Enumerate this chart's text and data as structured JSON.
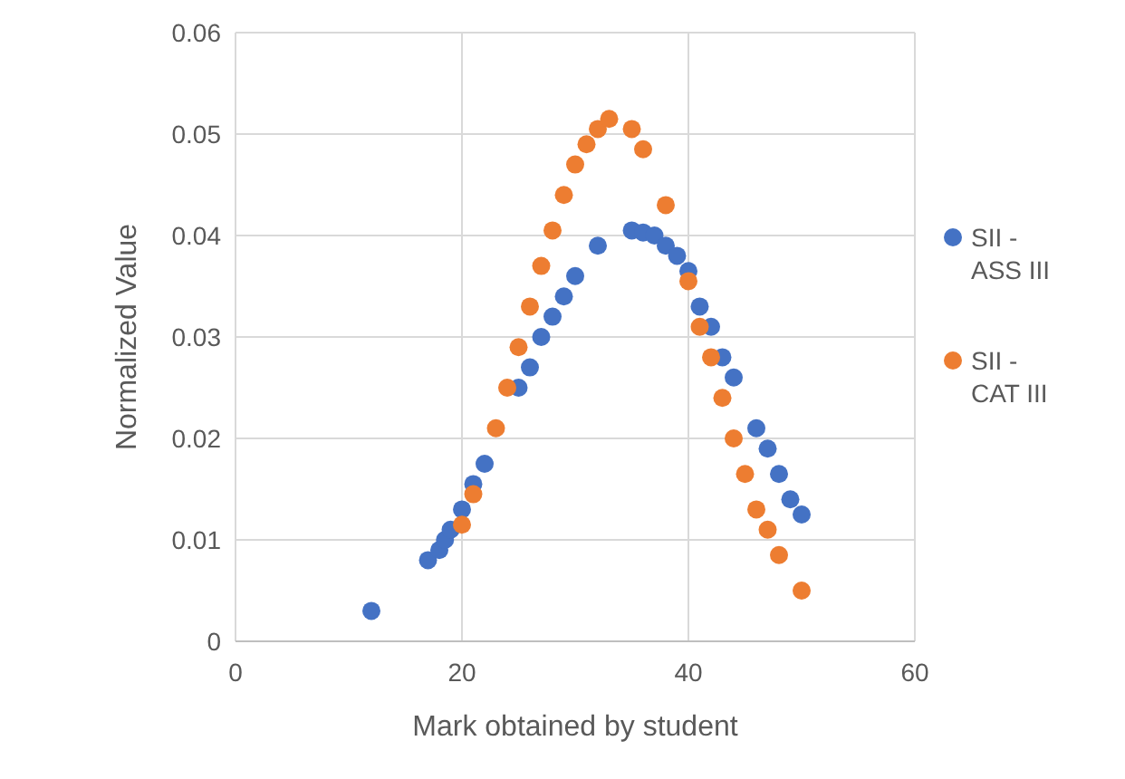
{
  "chart_data": {
    "type": "scatter",
    "xlabel": "Mark obtained by student",
    "ylabel": "Normalized Value",
    "xlim": [
      0,
      60
    ],
    "xticks": [
      0,
      20,
      40,
      60
    ],
    "ylim": [
      0,
      0.06
    ],
    "yticks": [
      0,
      0.01,
      0.02,
      0.03,
      0.04,
      0.05,
      0.06
    ],
    "grid": true,
    "legend": "right",
    "marker": "circle",
    "series": [
      {
        "name": "SII - ASS III",
        "color": "#4472c4",
        "x": [
          12,
          17,
          18,
          18.5,
          19,
          20,
          21,
          22,
          25,
          26,
          27,
          28,
          29,
          30,
          32,
          35,
          36,
          37,
          38,
          39,
          40,
          41,
          42,
          43,
          44,
          46,
          47,
          48,
          49,
          50
        ],
        "values": [
          0.003,
          0.008,
          0.009,
          0.01,
          0.011,
          0.013,
          0.0155,
          0.0175,
          0.025,
          0.027,
          0.03,
          0.032,
          0.034,
          0.036,
          0.039,
          0.0405,
          0.0403,
          0.04,
          0.039,
          0.038,
          0.0365,
          0.033,
          0.031,
          0.028,
          0.026,
          0.021,
          0.019,
          0.0165,
          0.014,
          0.0125
        ]
      },
      {
        "name": "SII - CAT III",
        "color": "#ed7d31",
        "x": [
          20,
          21,
          23,
          24,
          25,
          26,
          27,
          28,
          29,
          30,
          31,
          32,
          33,
          35,
          36,
          38,
          40,
          41,
          42,
          43,
          44,
          45,
          46,
          47,
          48,
          50
        ],
        "values": [
          0.0115,
          0.0145,
          0.021,
          0.025,
          0.029,
          0.033,
          0.037,
          0.0405,
          0.044,
          0.047,
          0.049,
          0.0505,
          0.0515,
          0.0505,
          0.0485,
          0.043,
          0.0355,
          0.031,
          0.028,
          0.024,
          0.02,
          0.0165,
          0.013,
          0.011,
          0.0085,
          0.005
        ]
      }
    ]
  }
}
